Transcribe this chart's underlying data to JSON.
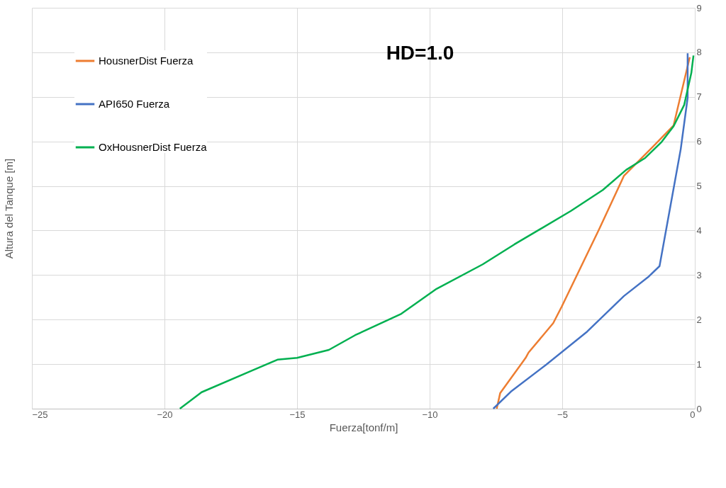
{
  "chart_data": {
    "type": "line",
    "title": "HD=1.0",
    "xlabel": "Fuerza[tonf/m]",
    "ylabel": "Altura del Tanque [m]",
    "xlim": [
      -25,
      0
    ],
    "xticks": [
      -25,
      -20,
      -15,
      -10,
      -5,
      0
    ],
    "ylim": [
      0,
      9
    ],
    "yticks": [
      0,
      1,
      2,
      3,
      4,
      5,
      6,
      7,
      8,
      9
    ],
    "grid": true,
    "legend": "top left",
    "marker": "none",
    "line_style": "solid",
    "series": [
      {
        "name": "HousnerDist Fuerza",
        "color": "#ed7d31",
        "x": [
          -7.47,
          -7.34,
          -6.38,
          -6.27,
          -5.34,
          -5.02,
          -3.6,
          -2.67,
          -1.6,
          -0.8,
          -0.19
        ],
        "values": [
          0,
          0.35,
          1.14,
          1.26,
          1.92,
          2.29,
          4.04,
          5.23,
          5.87,
          6.36,
          7.89
        ]
      },
      {
        "name": "API650 Fuerza",
        "color": "#4472c4",
        "x": [
          -7.6,
          -6.94,
          -5.6,
          -4.06,
          -2.67,
          -1.73,
          -1.33,
          -0.53,
          -0.27,
          -0.27
        ],
        "values": [
          0,
          0.38,
          0.99,
          1.73,
          2.53,
          2.97,
          3.2,
          5.83,
          6.98,
          7.98
        ]
      },
      {
        "name": "OxHousnerDist Fuerza",
        "color": "#00b050",
        "x": [
          -19.42,
          -18.6,
          -16.68,
          -15.74,
          -15.0,
          -13.8,
          -12.81,
          -11.07,
          -9.74,
          -8.0,
          -6.8,
          -4.67,
          -3.47,
          -2.59,
          -1.87,
          -1.25,
          -0.8,
          -0.4,
          -0.13,
          -0.05
        ],
        "values": [
          0,
          0.37,
          0.86,
          1.1,
          1.14,
          1.32,
          1.65,
          2.13,
          2.69,
          3.24,
          3.69,
          4.44,
          4.91,
          5.36,
          5.63,
          5.99,
          6.34,
          6.82,
          7.54,
          7.93
        ]
      }
    ]
  }
}
